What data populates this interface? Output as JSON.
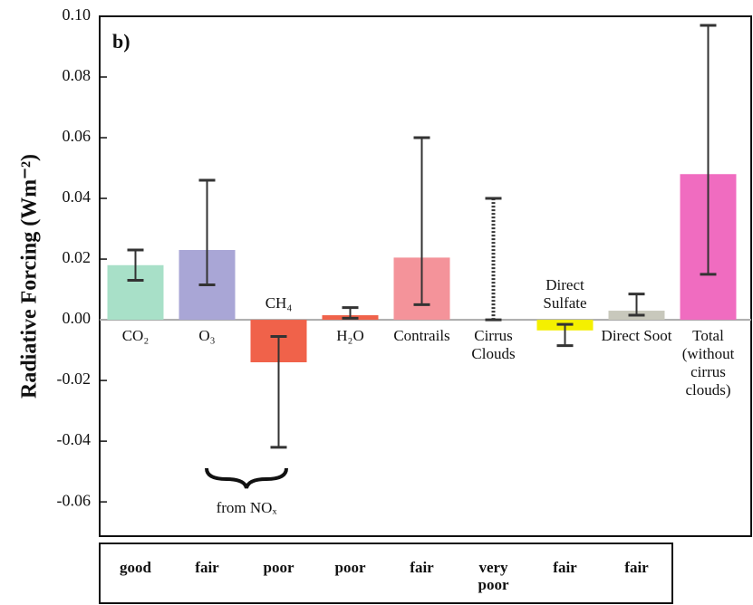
{
  "chart_data": {
    "type": "bar",
    "panel_label": "b)",
    "ylabel": "Radiative Forcing (Wm⁻²)",
    "categories": [
      "CO₂",
      "O₃",
      "CH₄",
      "H₂O",
      "Contrails",
      "Cirrus Clouds",
      "Direct Sulfate",
      "Direct Soot",
      "Total (without cirrus clouds)"
    ],
    "values": [
      0.018,
      0.023,
      -0.014,
      0.0015,
      0.0205,
      null,
      -0.0035,
      0.003,
      0.048
    ],
    "error_low": [
      0.013,
      0.0115,
      -0.042,
      0.0005,
      0.005,
      0,
      -0.0085,
      0.0015,
      0.015
    ],
    "error_high": [
      0.023,
      0.046,
      -0.0055,
      0.004,
      0.06,
      0.04,
      -0.0015,
      0.0085,
      0.097
    ],
    "colors": [
      "#a8e0c8",
      "#a9a6d6",
      "#f0624a",
      "#f0624a",
      "#f4939a",
      "#888888",
      "#f4f000",
      "#c8c8bc",
      "#f06cc0"
    ],
    "ylim": [
      -0.0713,
      0.1
    ],
    "yticks": [
      {
        "value": 0.1,
        "label": "0.10"
      },
      {
        "value": 0.08,
        "label": "0.08"
      },
      {
        "value": 0.06,
        "label": "0.06"
      },
      {
        "value": 0.04,
        "label": "0.04"
      },
      {
        "value": 0.02,
        "label": "0.02"
      },
      {
        "value": 0,
        "label": "0.00"
      },
      {
        "value": -0.02,
        "label": "-0.02"
      },
      {
        "value": -0.04,
        "label": "-0.04"
      },
      {
        "value": -0.06,
        "label": "-0.06"
      }
    ],
    "annotation": "from NOₓ",
    "confidence": [
      "good",
      "fair",
      "poor",
      "poor",
      "fair",
      "very poor",
      "fair",
      "fair"
    ]
  }
}
